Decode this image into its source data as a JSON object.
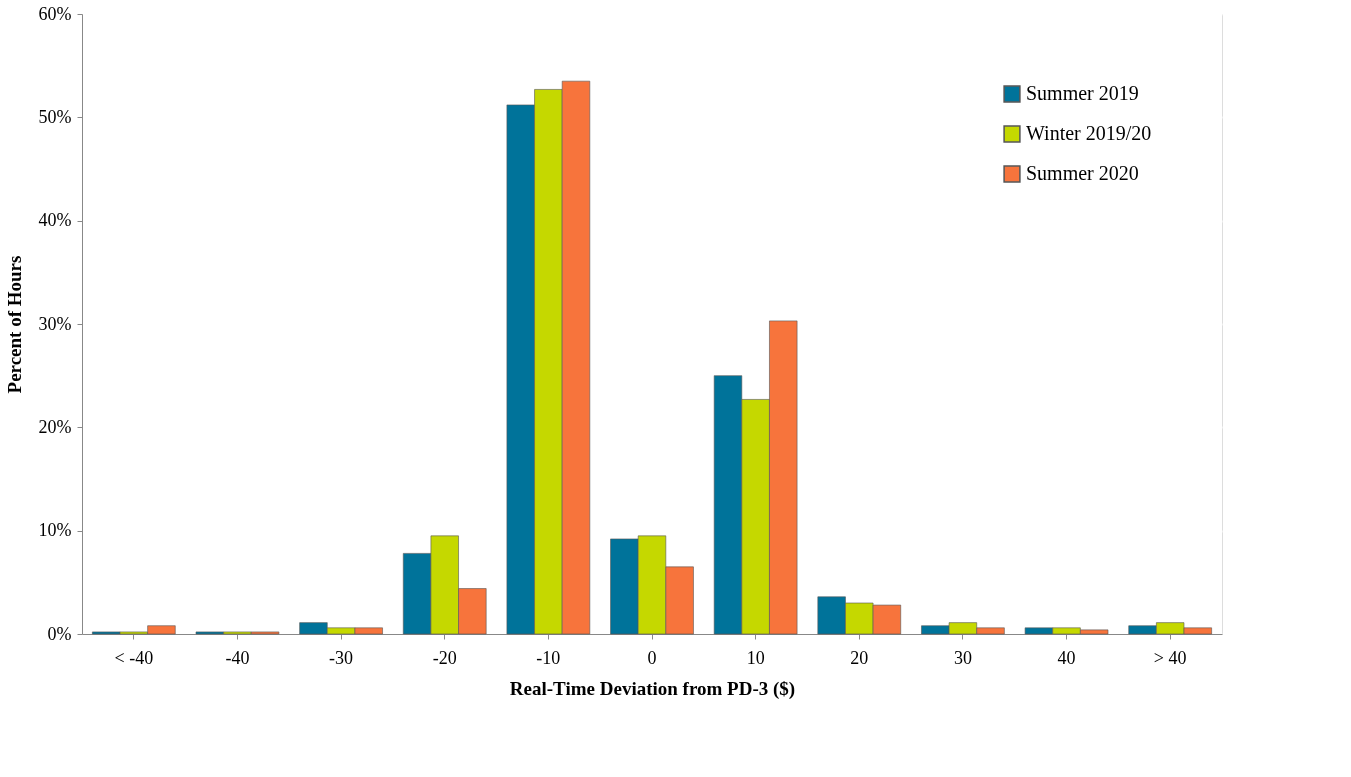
{
  "chart_data": {
    "type": "bar",
    "xlabel": "Real-Time Deviation from PD-3 ($)",
    "ylabel": "Percent of Hours",
    "categories": [
      "< -40",
      "-40",
      "-30",
      "-20",
      "-10",
      "0",
      "10",
      "20",
      "30",
      "40",
      "> 40"
    ],
    "series": [
      {
        "name": "Summer 2019",
        "color": "#00739a",
        "values": [
          0.2,
          0.2,
          1.1,
          7.8,
          51.2,
          9.2,
          25.0,
          3.6,
          0.8,
          0.6,
          0.8
        ]
      },
      {
        "name": "Winter 2019/20",
        "color": "#c5d800",
        "values": [
          0.2,
          0.2,
          0.6,
          9.5,
          52.7,
          9.5,
          22.7,
          3.0,
          1.1,
          0.6,
          1.1
        ]
      },
      {
        "name": "Summer 2020",
        "color": "#f7743c",
        "values": [
          0.8,
          0.2,
          0.6,
          4.4,
          53.5,
          6.5,
          30.3,
          2.8,
          0.6,
          0.4,
          0.6
        ]
      }
    ],
    "ylim": [
      0,
      60
    ],
    "yticks": [
      {
        "value": 0,
        "label": "0%"
      },
      {
        "value": 10,
        "label": "10%"
      },
      {
        "value": 20,
        "label": "20%"
      },
      {
        "value": 30,
        "label": "30%"
      },
      {
        "value": 40,
        "label": "40%"
      },
      {
        "value": 50,
        "label": "50%"
      },
      {
        "value": 60,
        "label": "60%"
      }
    ],
    "grid": "y",
    "legend": "top right"
  }
}
